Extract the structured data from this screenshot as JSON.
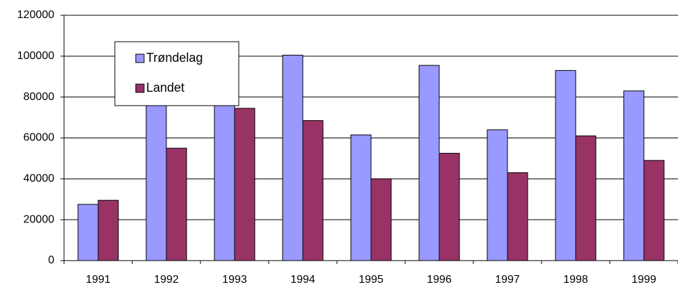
{
  "chart_data": {
    "type": "bar",
    "categories": [
      "1991",
      "1992",
      "1993",
      "1994",
      "1995",
      "1996",
      "1997",
      "1998",
      "1999"
    ],
    "series": [
      {
        "name": "Trøndelag",
        "color": "#9999ff",
        "values": [
          27500,
          88000,
          85000,
          100500,
          61500,
          95500,
          64000,
          93000,
          83000
        ]
      },
      {
        "name": "Landet",
        "color": "#993366",
        "values": [
          29500,
          55000,
          74500,
          68500,
          40000,
          52500,
          43000,
          61000,
          49000
        ]
      }
    ],
    "ylim": [
      0,
      120000
    ],
    "yticks": [
      0,
      20000,
      40000,
      60000,
      80000,
      100000,
      120000
    ],
    "grid": true
  }
}
